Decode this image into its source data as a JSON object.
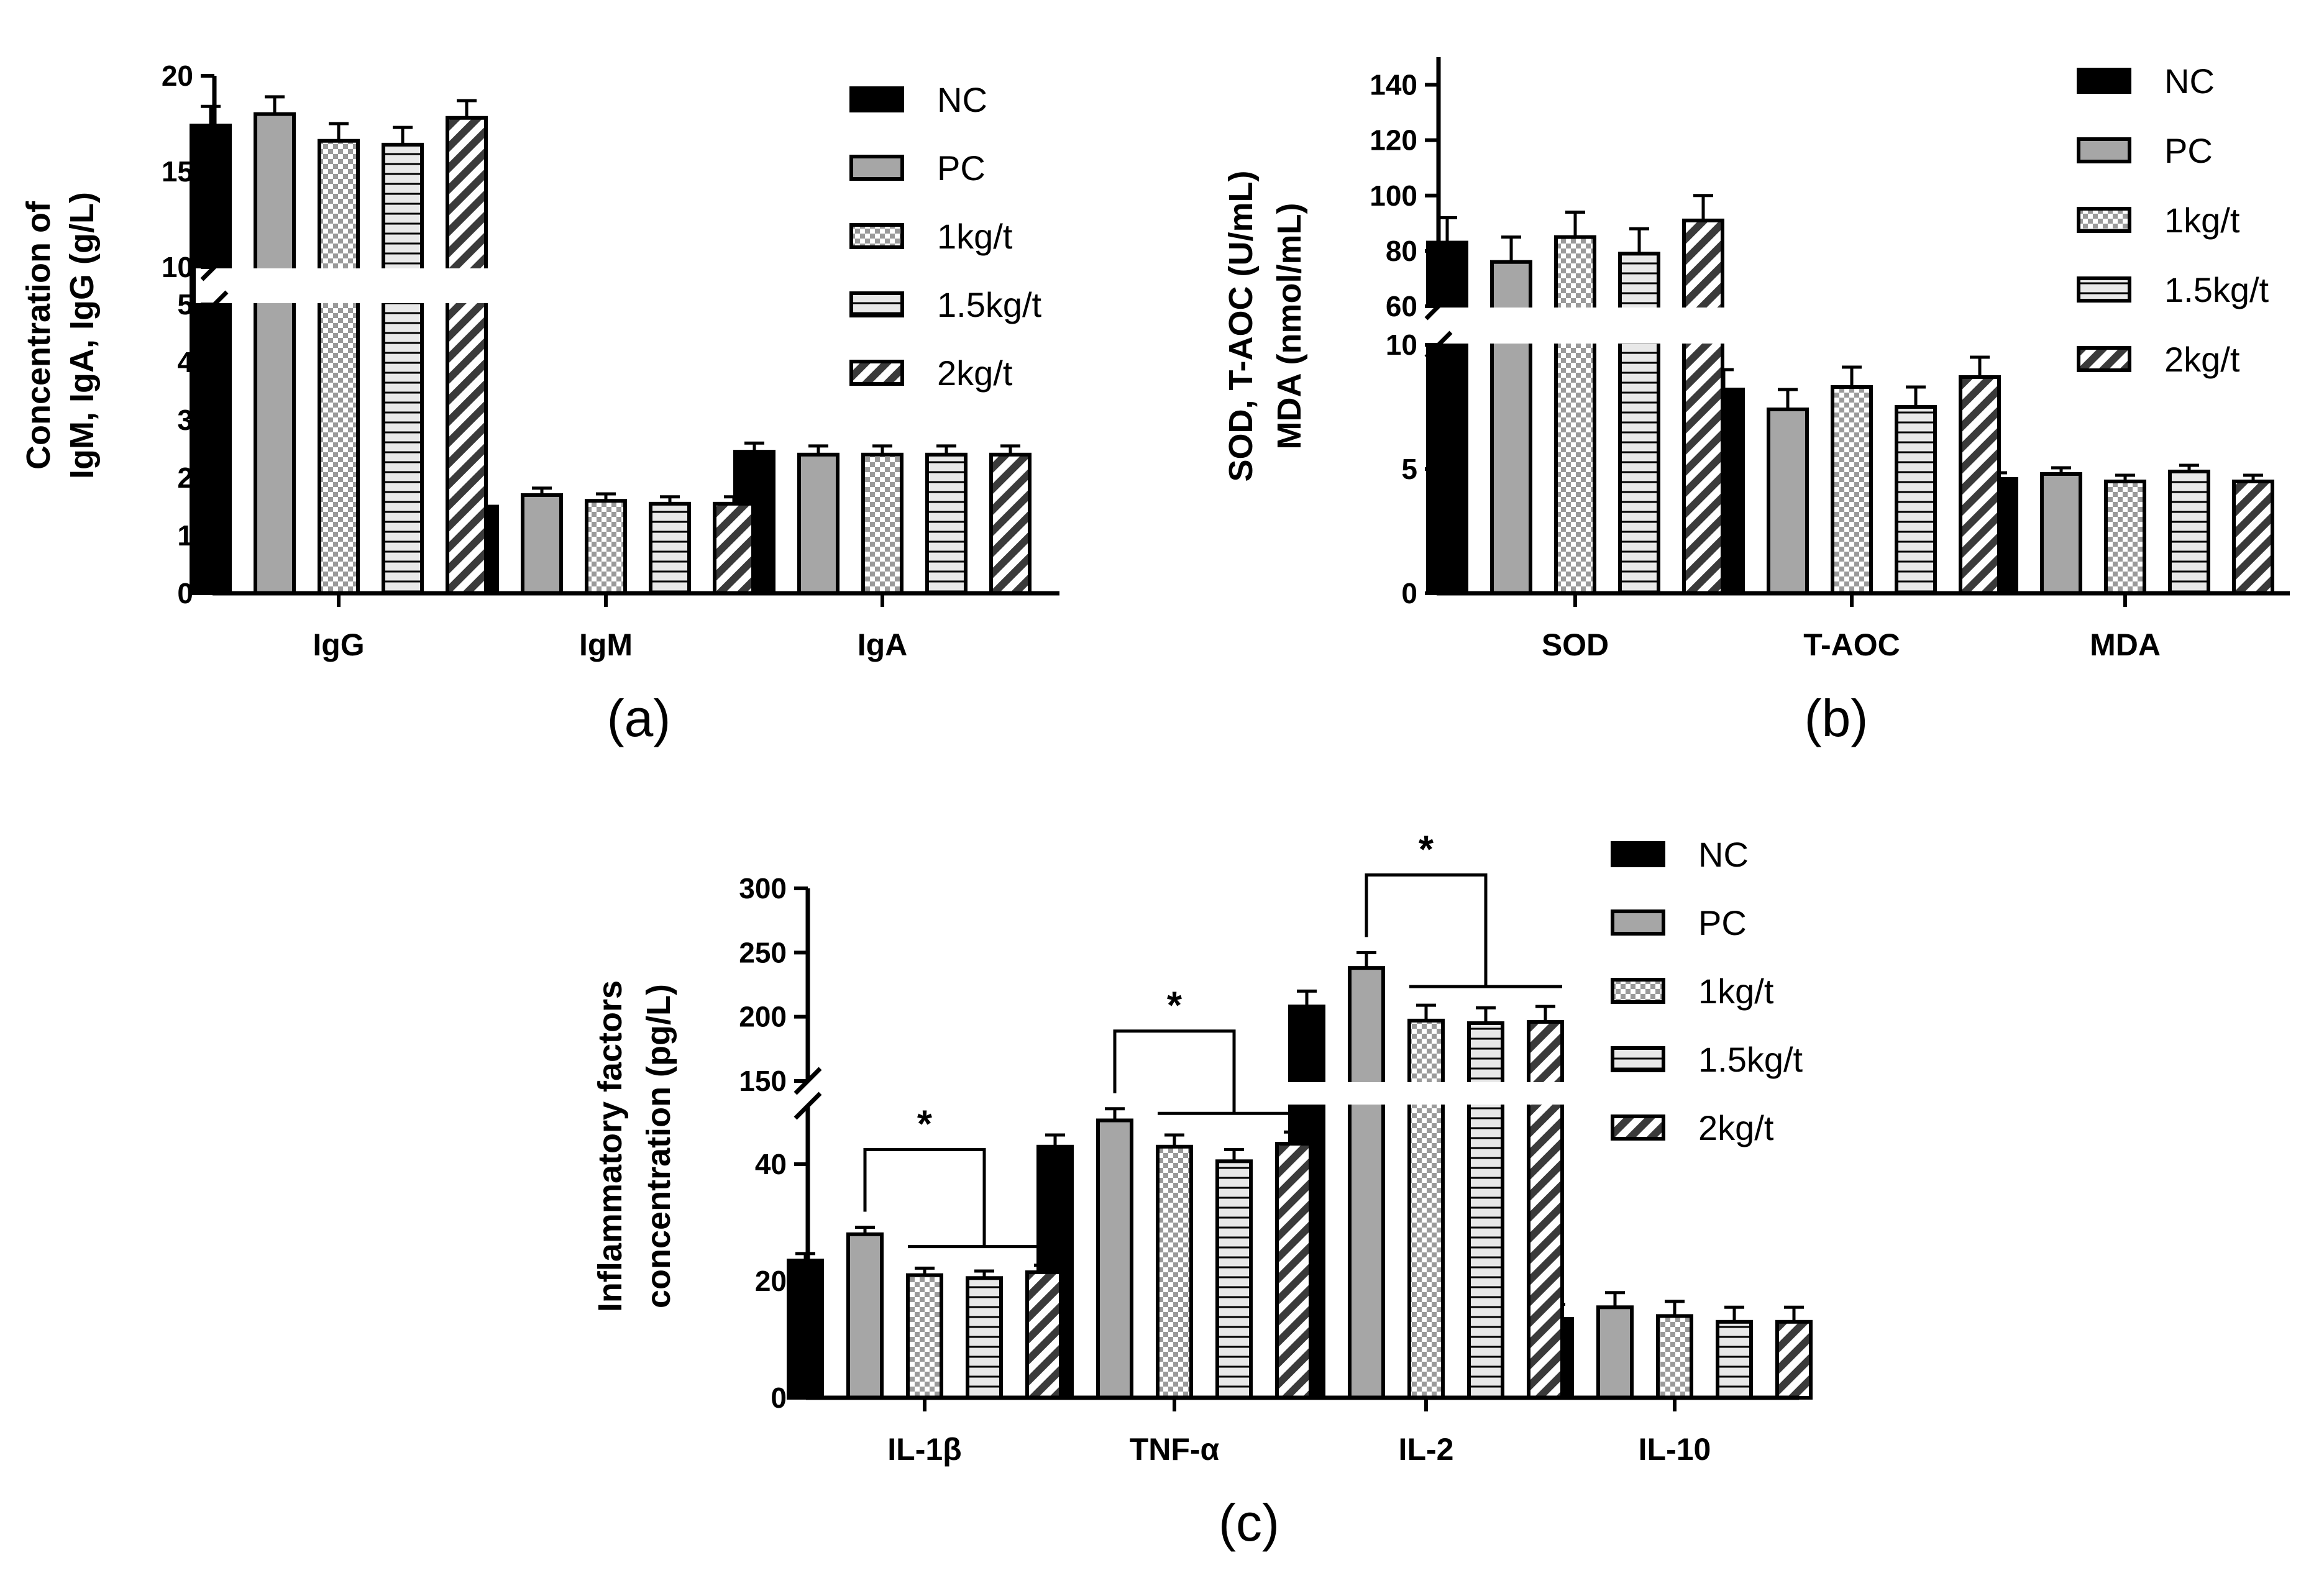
{
  "groups": [
    "NC",
    "PC",
    "1kg/t",
    "1.5kg/t",
    "2kg/t"
  ],
  "group_styles": [
    {
      "name": "NC",
      "pattern": "solid-black"
    },
    {
      "name": "PC",
      "pattern": "solid-gray"
    },
    {
      "name": "1kg/t",
      "pattern": "checker"
    },
    {
      "name": "1.5kg/t",
      "pattern": "horizontal-lines"
    },
    {
      "name": "2kg/t",
      "pattern": "diagonal-stripes"
    }
  ],
  "colors": {
    "black": "#000000",
    "gray": "#a6a6a6",
    "light": "#e8e8e8",
    "white": "#ffffff"
  },
  "chart_data": [
    {
      "panel": "(a)",
      "type": "bar",
      "ylabel": [
        "Concentration of",
        "IgM, IgA, IgG (g/L)"
      ],
      "categories": [
        "IgG",
        "IgM",
        "IgA"
      ],
      "series": [
        {
          "name": "NC",
          "values": [
            17.4,
            1.5,
            2.45
          ],
          "errors": [
            1.0,
            0.12,
            0.15
          ]
        },
        {
          "name": "PC",
          "values": [
            18.0,
            1.7,
            2.4
          ],
          "errors": [
            0.9,
            0.12,
            0.15
          ]
        },
        {
          "name": "1kg/t",
          "values": [
            16.6,
            1.6,
            2.4
          ],
          "errors": [
            0.9,
            0.12,
            0.15
          ]
        },
        {
          "name": "1.5kg/t",
          "values": [
            16.4,
            1.55,
            2.4
          ],
          "errors": [
            0.9,
            0.12,
            0.15
          ]
        },
        {
          "name": "2kg/t",
          "values": [
            17.8,
            1.55,
            2.4
          ],
          "errors": [
            0.9,
            0.12,
            0.15
          ]
        }
      ],
      "y_segments": [
        {
          "range": [
            0,
            5
          ],
          "ticks": [
            0,
            1,
            2,
            3,
            4,
            5
          ]
        },
        {
          "range": [
            10,
            20
          ],
          "ticks": [
            10,
            15,
            20
          ]
        }
      ],
      "significance": []
    },
    {
      "panel": "(b)",
      "type": "bar",
      "ylabel": [
        "SOD, T-AOC (U/mL)",
        "MDA (nmol/mL)"
      ],
      "categories": [
        "SOD",
        "T-AOC",
        "MDA"
      ],
      "series": [
        {
          "name": "NC",
          "values": [
            83,
            8.2,
            4.6
          ],
          "errors": [
            9,
            0.8,
            0.25
          ]
        },
        {
          "name": "PC",
          "values": [
            76,
            7.4,
            4.8
          ],
          "errors": [
            9,
            0.8,
            0.25
          ]
        },
        {
          "name": "1kg/t",
          "values": [
            85,
            8.3,
            4.5
          ],
          "errors": [
            9,
            0.8,
            0.25
          ]
        },
        {
          "name": "1.5kg/t",
          "values": [
            79,
            7.5,
            4.9
          ],
          "errors": [
            9,
            0.8,
            0.25
          ]
        },
        {
          "name": "2kg/t",
          "values": [
            91,
            8.7,
            4.5
          ],
          "errors": [
            9,
            0.8,
            0.25
          ]
        }
      ],
      "y_segments": [
        {
          "range": [
            0,
            10
          ],
          "ticks": [
            0,
            5,
            10
          ]
        },
        {
          "range": [
            60,
            150
          ],
          "ticks": [
            60,
            80,
            100,
            120,
            140
          ]
        }
      ],
      "significance": []
    },
    {
      "panel": "(c)",
      "type": "bar",
      "ylabel": [
        "Inflammatory factors",
        "concentration (pg/L)"
      ],
      "categories": [
        "IL-1β",
        "TNF-α",
        "IL-2",
        "IL-10"
      ],
      "series": [
        {
          "name": "NC",
          "values": [
            23.5,
            43,
            208,
            13.5
          ],
          "errors": [
            1.2,
            2,
            12,
            2.5
          ]
        },
        {
          "name": "PC",
          "values": [
            28,
            47.5,
            238,
            15.5
          ],
          "errors": [
            1.2,
            2,
            12,
            2.5
          ]
        },
        {
          "name": "1kg/t",
          "values": [
            21,
            43,
            197,
            14
          ],
          "errors": [
            1.2,
            2,
            12,
            2.5
          ]
        },
        {
          "name": "1.5kg/t",
          "values": [
            20.5,
            40.5,
            195,
            13
          ],
          "errors": [
            1.2,
            2,
            12,
            2.5
          ]
        },
        {
          "name": "2kg/t",
          "values": [
            21.5,
            43.5,
            196,
            13
          ],
          "errors": [
            1.2,
            2,
            12,
            2.5
          ]
        }
      ],
      "y_segments": [
        {
          "range": [
            0,
            50
          ],
          "ticks": [
            0,
            20,
            40
          ]
        },
        {
          "range": [
            150,
            300
          ],
          "ticks": [
            150,
            200,
            250,
            300
          ]
        }
      ],
      "significance": [
        {
          "category": "IL-1β",
          "label": "*"
        },
        {
          "category": "TNF-α",
          "label": "*"
        },
        {
          "category": "IL-2",
          "label": "*"
        }
      ]
    }
  ]
}
